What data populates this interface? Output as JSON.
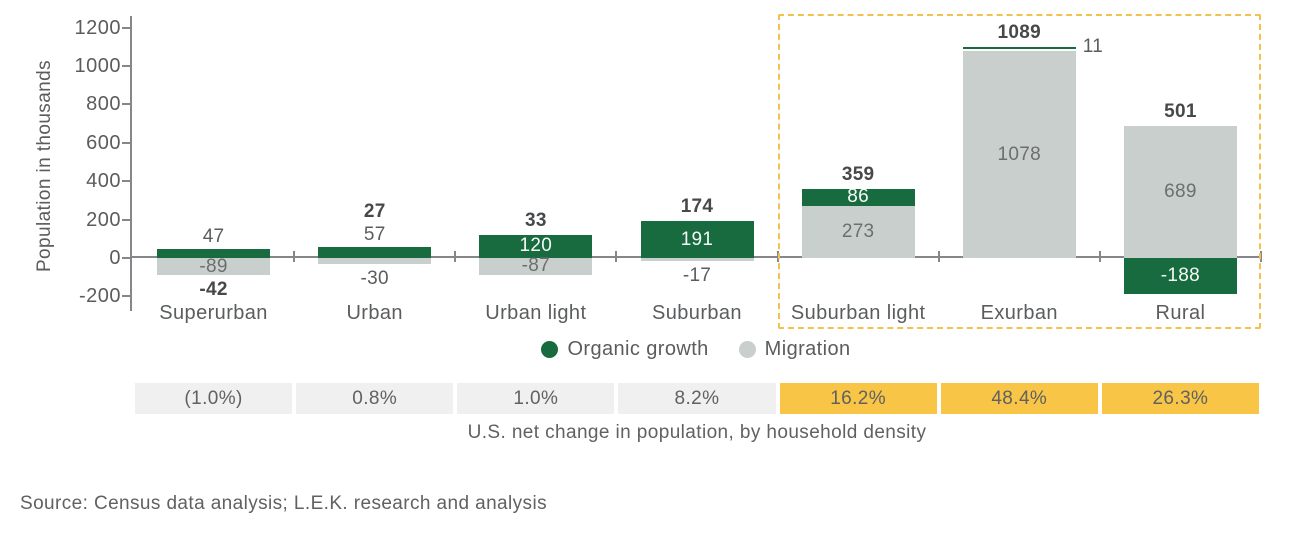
{
  "chart_data": {
    "type": "bar",
    "stacked": true,
    "title": "U.S. net change in population, by household density",
    "ylabel": "Population in thousands",
    "ylim": [
      -200,
      1200
    ],
    "yticks": [
      1200,
      1000,
      800,
      600,
      400,
      200,
      0,
      -200
    ],
    "grid": false,
    "legend_position": "bottom",
    "categories": [
      "Superurban",
      "Urban",
      "Urban light",
      "Suburban",
      "Suburban light",
      "Exurban",
      "Rural"
    ],
    "series": [
      {
        "name": "Organic growth",
        "color": "#186B3E",
        "values": [
          47,
          57,
          120,
          191,
          86,
          11,
          -188
        ]
      },
      {
        "name": "Migration",
        "color": "#C9CFCC",
        "values": [
          -89,
          -30,
          -87,
          -17,
          273,
          1078,
          689
        ]
      }
    ],
    "totals": [
      -42,
      27,
      33,
      174,
      359,
      1089,
      501
    ],
    "highlight_box_categories": [
      "Suburban light",
      "Exurban",
      "Rural"
    ],
    "pct_row": {
      "values": [
        "(1.0%)",
        "0.8%",
        "1.0%",
        "8.2%",
        "16.2%",
        "48.4%",
        "26.3%"
      ],
      "highlighted": [
        false,
        false,
        false,
        false,
        true,
        true,
        true
      ]
    }
  },
  "colors": {
    "organic_green": "#186B3E",
    "migration_gray": "#C9CFCC",
    "cell_gray": "#EFF0EF",
    "cell_yellow": "#F8C546",
    "dashed_border": "#F2C14E",
    "axis": "#85878A",
    "text": "#5A5C5E",
    "total_text": "#46484A"
  },
  "source": "Source: Census data analysis; L.E.K. research and analysis"
}
